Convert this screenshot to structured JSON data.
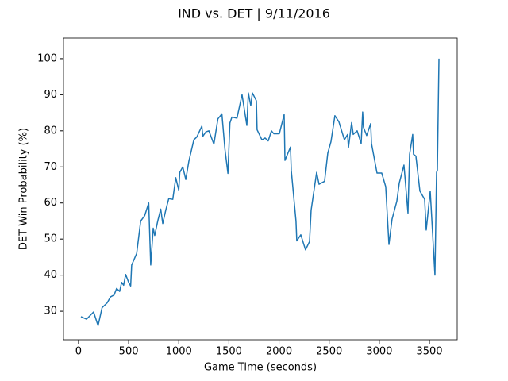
{
  "chart_data": {
    "type": "line",
    "title": "IND vs. DET | 9/11/2016",
    "x_label": "Game Time (seconds)",
    "y_label": "DET Win Probability (%)",
    "color": "#1f77b4",
    "x": [
      24,
      80,
      150,
      195,
      235,
      285,
      320,
      355,
      380,
      410,
      430,
      450,
      470,
      500,
      520,
      530,
      580,
      620,
      660,
      700,
      720,
      745,
      760,
      790,
      820,
      840,
      870,
      900,
      940,
      970,
      1000,
      1010,
      1040,
      1070,
      1100,
      1150,
      1180,
      1230,
      1240,
      1270,
      1300,
      1350,
      1390,
      1430,
      1460,
      1490,
      1510,
      1530,
      1580,
      1631,
      1679,
      1694,
      1718,
      1734,
      1774,
      1781,
      1829,
      1861,
      1892,
      1924,
      1948,
      2003,
      2051,
      2059,
      2114,
      2122,
      2169,
      2177,
      2217,
      2264,
      2304,
      2320,
      2375,
      2399,
      2454,
      2486,
      2518,
      2557,
      2597,
      2652,
      2684,
      2692,
      2724,
      2740,
      2779,
      2819,
      2834,
      2842,
      2874,
      2914,
      2922,
      2977,
      3024,
      3064,
      3096,
      3127,
      3175,
      3199,
      3246,
      3286,
      3302,
      3333,
      3341,
      3365,
      3405,
      3452,
      3468,
      3508,
      3555,
      3571,
      3579,
      3595
    ],
    "values": [
      28.5,
      27.8,
      29.8,
      26,
      31,
      32.3,
      34,
      34.5,
      36.3,
      35.5,
      38,
      37.2,
      40.2,
      38,
      37,
      42.8,
      46,
      55,
      56.5,
      60,
      42.8,
      53,
      51,
      55,
      58.3,
      54.3,
      58,
      61.2,
      61,
      67,
      63.5,
      68.5,
      70,
      66.5,
      71.5,
      77.5,
      78.3,
      81.3,
      78.5,
      79.7,
      80,
      76.3,
      83.3,
      84.7,
      75,
      68.2,
      82.2,
      83.8,
      83.5,
      90,
      81.5,
      90.5,
      87,
      90.5,
      88.3,
      80.3,
      77.5,
      78,
      77.2,
      80,
      79.2,
      79.2,
      84.5,
      71.8,
      75.5,
      69,
      55,
      49.5,
      51.2,
      47,
      49.3,
      58,
      68.5,
      65.2,
      66,
      73.8,
      77,
      84.2,
      82.5,
      77.5,
      79,
      75.3,
      82.3,
      79,
      80,
      76.5,
      85.2,
      81,
      78.7,
      82,
      76.5,
      68.3,
      68.3,
      64.5,
      48.5,
      55.5,
      60.5,
      65.5,
      70.5,
      57.2,
      73.5,
      79,
      73.5,
      73,
      63.3,
      61,
      52.5,
      63.3,
      40,
      68.5,
      69,
      100
    ],
    "xlim": [
      -150,
      3777
    ],
    "ylim": [
      22.1,
      105.7
    ],
    "xticks": [
      0,
      500,
      1000,
      1500,
      2000,
      2500,
      3000,
      3500
    ],
    "yticks": [
      30,
      40,
      50,
      60,
      70,
      80,
      90,
      100
    ]
  }
}
